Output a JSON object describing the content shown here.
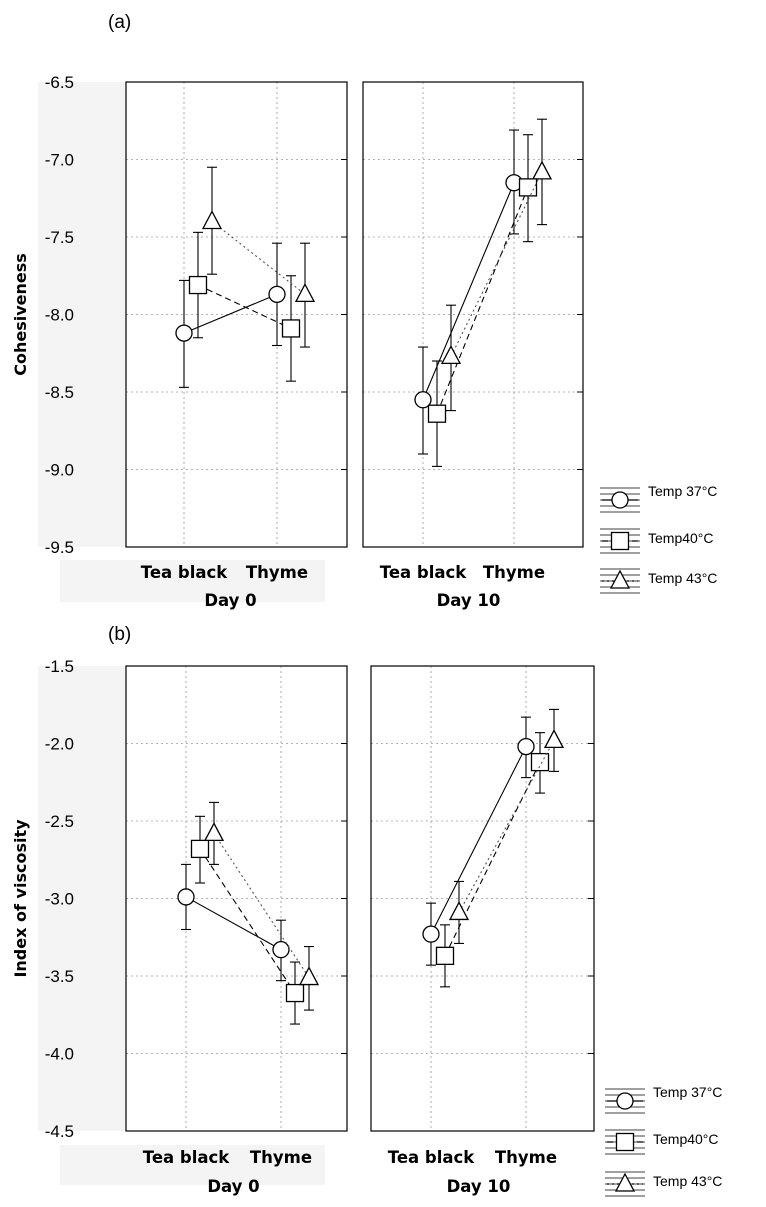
{
  "chart_data": [
    {
      "type": "line",
      "panel_label": "(a)",
      "ylabel": "Cohesiveness",
      "ylim": [
        -9.5,
        -6.5
      ],
      "yticks": [
        "-6.5",
        "-7.0",
        "-7.5",
        "-8.0",
        "-8.5",
        "-9.0",
        "-9.5"
      ],
      "grid": true,
      "legend_position": "right",
      "legend": [
        "Temp 37°C",
        "Temp40°C",
        "Temp 43°C"
      ],
      "groups": [
        {
          "label": "Day 0",
          "categories": [
            "Tea black",
            "Thyme"
          ],
          "series": [
            {
              "name": "Temp 37°C",
              "marker": "circle",
              "values": [
                -8.12,
                -7.87
              ],
              "err_low": [
                -8.47,
                -8.2
              ],
              "err_high": [
                -7.78,
                -7.54
              ]
            },
            {
              "name": "Temp40°C",
              "marker": "square",
              "values": [
                -7.81,
                -8.09
              ],
              "err_low": [
                -8.15,
                -8.43
              ],
              "err_high": [
                -7.47,
                -7.75
              ]
            },
            {
              "name": "Temp 43°C",
              "marker": "triangle",
              "values": [
                -7.4,
                -7.87
              ],
              "err_low": [
                -7.74,
                -8.21
              ],
              "err_high": [
                -7.05,
                -7.54
              ]
            }
          ]
        },
        {
          "label": "Day 10",
          "categories": [
            "Tea black",
            "Thyme"
          ],
          "series": [
            {
              "name": "Temp 37°C",
              "marker": "circle",
              "values": [
                -8.55,
                -7.15
              ],
              "err_low": [
                -8.9,
                -7.48
              ],
              "err_high": [
                -8.21,
                -6.81
              ]
            },
            {
              "name": "Temp40°C",
              "marker": "square",
              "values": [
                -8.64,
                -7.18
              ],
              "err_low": [
                -8.98,
                -7.53
              ],
              "err_high": [
                -8.3,
                -6.84
              ]
            },
            {
              "name": "Temp 43°C",
              "marker": "triangle",
              "values": [
                -8.27,
                -7.08
              ],
              "err_low": [
                -8.62,
                -7.42
              ],
              "err_high": [
                -7.94,
                -6.74
              ]
            }
          ]
        }
      ]
    },
    {
      "type": "line",
      "panel_label": "(b)",
      "ylabel": "Index of viscosity",
      "ylim": [
        -4.5,
        -1.5
      ],
      "yticks": [
        "-1.5",
        "-2.0",
        "-2.5",
        "-3.0",
        "-3.5",
        "-4.0",
        "-4.5"
      ],
      "grid": true,
      "legend_position": "right",
      "legend": [
        "Temp 37°C",
        "Temp40°C",
        "Temp 43°C"
      ],
      "groups": [
        {
          "label": "Day 0",
          "categories": [
            "Tea black",
            "Thyme"
          ],
          "series": [
            {
              "name": "Temp 37°C",
              "marker": "circle",
              "values": [
                -2.99,
                -3.33
              ],
              "err_low": [
                -3.2,
                -3.53
              ],
              "err_high": [
                -2.78,
                -3.14
              ]
            },
            {
              "name": "Temp40°C",
              "marker": "square",
              "values": [
                -2.68,
                -3.61
              ],
              "err_low": [
                -2.9,
                -3.81
              ],
              "err_high": [
                -2.47,
                -3.41
              ]
            },
            {
              "name": "Temp 43°C",
              "marker": "triangle",
              "values": [
                -2.58,
                -3.51
              ],
              "err_low": [
                -2.78,
                -3.72
              ],
              "err_high": [
                -2.38,
                -3.31
              ]
            }
          ]
        },
        {
          "label": "Day 10",
          "categories": [
            "Tea black",
            "Thyme"
          ],
          "series": [
            {
              "name": "Temp 37°C",
              "marker": "circle",
              "values": [
                -3.23,
                -2.02
              ],
              "err_low": [
                -3.43,
                -2.22
              ],
              "err_high": [
                -3.03,
                -1.83
              ]
            },
            {
              "name": "Temp40°C",
              "marker": "square",
              "values": [
                -3.37,
                -2.12
              ],
              "err_low": [
                -3.57,
                -2.32
              ],
              "err_high": [
                -3.17,
                -1.93
              ]
            },
            {
              "name": "Temp 43°C",
              "marker": "triangle",
              "values": [
                -3.09,
                -1.98
              ],
              "err_low": [
                -3.29,
                -2.18
              ],
              "err_high": [
                -2.89,
                -1.78
              ]
            }
          ]
        }
      ]
    }
  ]
}
